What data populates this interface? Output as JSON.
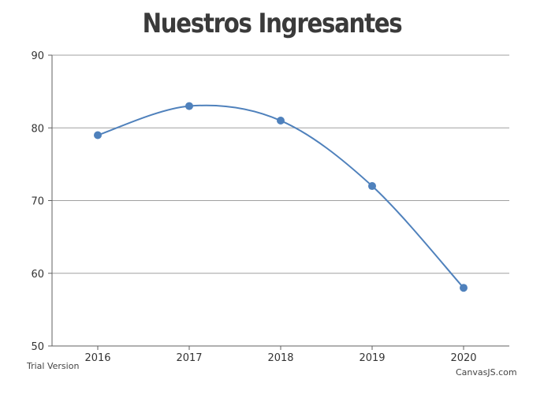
{
  "chart_data": {
    "type": "line",
    "title": "Nuestros Ingresantes",
    "xlabel": "",
    "ylabel": "",
    "categories": [
      "2016",
      "2017",
      "2018",
      "2019",
      "2020"
    ],
    "series": [
      {
        "values": [
          79,
          83,
          81,
          72,
          58
        ]
      }
    ],
    "ylim": [
      50,
      90
    ],
    "yticks": [
      "50",
      "60",
      "70",
      "80",
      "90"
    ],
    "grid": true,
    "smooth": true,
    "colors": {
      "line": "#4f81bc",
      "grid": "#a0a0a0",
      "axis": "#606060",
      "tick_text": "#333333"
    }
  },
  "watermark": {
    "trial": "Trial Version",
    "brand": "CanvasJS.com"
  }
}
